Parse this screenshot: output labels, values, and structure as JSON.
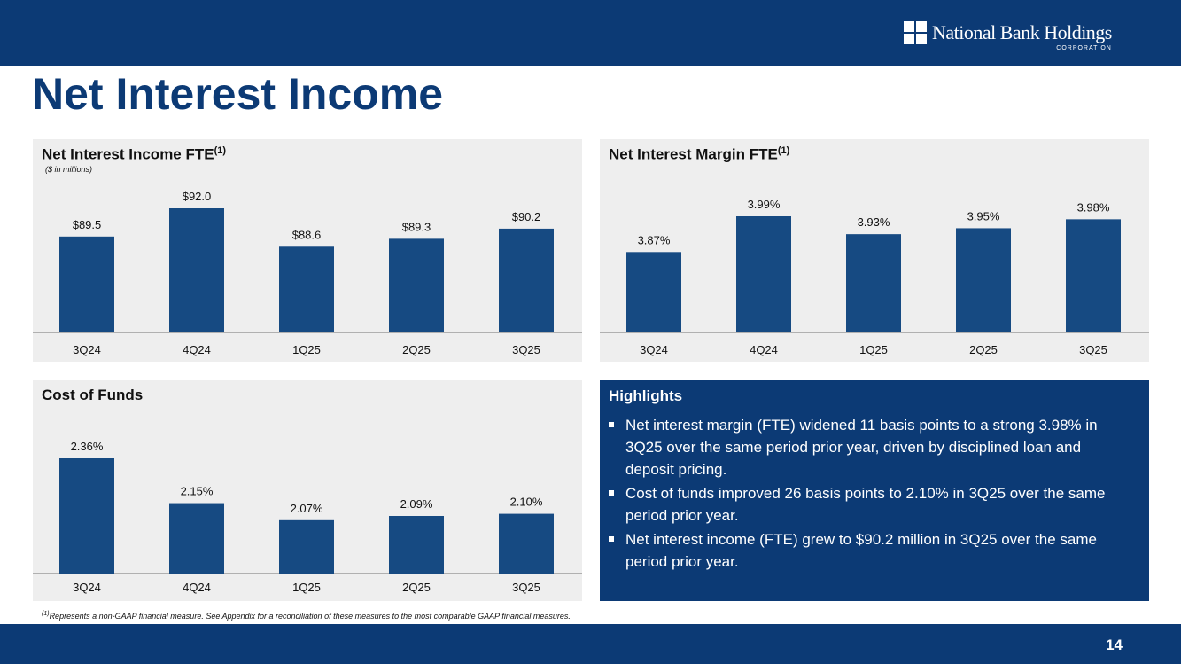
{
  "header": {
    "logo_name": "National Bank Holdings",
    "logo_sub": "CORPORATION"
  },
  "page_title": "Net Interest Income",
  "colors": {
    "brand_navy": "#0c3a75",
    "bar_fill": "#164a82",
    "panel_bg": "#eeeeee"
  },
  "panels": {
    "nii": {
      "title": "Net Interest Income FTE",
      "sup": "(1)",
      "subtitle": "($ in millions)"
    },
    "nim": {
      "title": "Net Interest Margin FTE",
      "sup": "(1)"
    },
    "cof": {
      "title": "Cost of Funds"
    }
  },
  "highlights": {
    "title": "Highlights",
    "items": [
      "Net interest margin (FTE) widened 11 basis points to a strong 3.98% in 3Q25 over the same period prior year, driven by disciplined loan and deposit pricing.",
      "Cost of funds improved 26 basis points to 2.10% in 3Q25 over the same period prior year.",
      "Net interest income (FTE) grew to $90.2 million in 3Q25 over the same period prior year."
    ]
  },
  "footnote": {
    "sup": "(1)",
    "text": "Represents a non-GAAP financial measure.  See Appendix for a reconciliation of these measures to the most comparable GAAP financial measures."
  },
  "page_number": "14",
  "chart_data": [
    {
      "type": "bar",
      "title": "Net Interest Income FTE",
      "subtitle": "($ in millions)",
      "categories": [
        "3Q24",
        "4Q24",
        "1Q25",
        "2Q25",
        "3Q25"
      ],
      "values": [
        89.5,
        92.0,
        88.6,
        89.3,
        90.2
      ],
      "labels": [
        "$89.5",
        "$92.0",
        "$88.6",
        "$89.3",
        "$90.2"
      ],
      "ylim": [
        81.0,
        92.0
      ],
      "xlabel": "",
      "ylabel": ""
    },
    {
      "type": "bar",
      "title": "Net Interest Margin FTE",
      "categories": [
        "3Q24",
        "4Q24",
        "1Q25",
        "2Q25",
        "3Q25"
      ],
      "values": [
        3.87,
        3.99,
        3.93,
        3.95,
        3.98
      ],
      "labels": [
        "3.87%",
        "3.99%",
        "3.93%",
        "3.95%",
        "3.98%"
      ],
      "ylim": [
        3.6,
        3.99
      ],
      "xlabel": "",
      "ylabel": ""
    },
    {
      "type": "bar",
      "title": "Cost of Funds",
      "categories": [
        "3Q24",
        "4Q24",
        "1Q25",
        "2Q25",
        "3Q25"
      ],
      "values": [
        2.36,
        2.15,
        2.07,
        2.09,
        2.1
      ],
      "labels": [
        "2.36%",
        "2.15%",
        "2.07%",
        "2.09%",
        "2.10%"
      ],
      "ylim": [
        1.82,
        2.36
      ],
      "xlabel": "",
      "ylabel": ""
    }
  ]
}
